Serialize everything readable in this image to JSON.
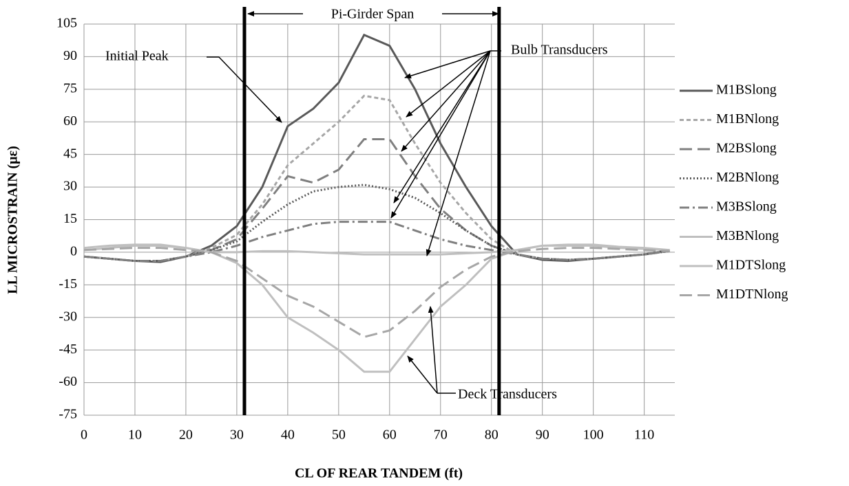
{
  "chart_data": {
    "type": "line",
    "xlabel": "CL OF REAR TANDEM (ft)",
    "ylabel": "LL MICROSTRAIN (με)",
    "x": [
      0,
      5,
      10,
      15,
      20,
      25,
      30,
      35,
      40,
      45,
      50,
      55,
      60,
      65,
      70,
      75,
      80,
      85,
      90,
      95,
      100,
      105,
      110,
      115
    ],
    "series": [
      {
        "name": "M1BSlong",
        "color": "#595959",
        "dash": "solid",
        "values": [
          -2,
          -3,
          -4,
          -4.5,
          -2,
          3,
          12,
          30,
          58,
          66,
          78,
          100,
          95,
          75,
          50,
          30,
          12,
          -1,
          -3.5,
          -4,
          -3,
          -2,
          -1,
          1
        ]
      },
      {
        "name": "M1BNlong",
        "color": "#a6a6a6",
        "dash": "dash",
        "values": [
          -2,
          -3,
          -4,
          -4,
          -2,
          2,
          8,
          22,
          40,
          50,
          60,
          72,
          70,
          50,
          32,
          18,
          6,
          -1,
          -3,
          -3.5,
          -3,
          -2,
          -1,
          1
        ]
      },
      {
        "name": "M2BSlong",
        "color": "#7f7f7f",
        "dash": "longdash",
        "values": [
          -2,
          -3,
          -4,
          -4,
          -2,
          1,
          6,
          20,
          35,
          32,
          38,
          52,
          52,
          35,
          20,
          10,
          3,
          -1,
          -3,
          -3.5,
          -3,
          -2,
          -1,
          0.5
        ]
      },
      {
        "name": "M2BNlong",
        "color": "#595959",
        "dash": "dot",
        "values": [
          -2,
          -3,
          -4,
          -4,
          -2,
          1,
          5,
          14,
          22,
          28,
          30,
          31,
          29,
          25,
          18,
          10,
          3,
          -1,
          -3,
          -3.5,
          -3,
          -2,
          -1,
          0.5
        ]
      },
      {
        "name": "M3BSlong",
        "color": "#7f7f7f",
        "dash": "dashdot",
        "values": [
          -2,
          -3,
          -4,
          -4,
          -2,
          0,
          3,
          7,
          10,
          13,
          14,
          14,
          14,
          10,
          6,
          3,
          1,
          -1,
          -3,
          -3.5,
          -3,
          -2,
          -1,
          0.5
        ]
      },
      {
        "name": "M3BNlong",
        "color": "#bfbfbf",
        "dash": "solid",
        "values": [
          2,
          3,
          3.5,
          3.5,
          2,
          0,
          0,
          0.5,
          0.5,
          0,
          -0.5,
          -1,
          -1,
          -1,
          -1,
          -0.5,
          0,
          1,
          3,
          3.5,
          3.5,
          2.5,
          2,
          1
        ]
      },
      {
        "name": "M1DTSlong",
        "color": "#bfbfbf",
        "dash": "solid",
        "values": [
          1,
          2,
          3,
          3,
          2,
          0,
          -5,
          -15,
          -30,
          -37,
          -45,
          -55,
          -55,
          -40,
          -25,
          -15,
          -3,
          1,
          3,
          3,
          3,
          2,
          1.5,
          1
        ]
      },
      {
        "name": "M1DTNlong",
        "color": "#a6a6a6",
        "dash": "longdash",
        "values": [
          1,
          1.5,
          2,
          2,
          1,
          0,
          -4,
          -12,
          -20,
          -25,
          -32,
          -39,
          -36,
          -27,
          -16,
          -8,
          -2,
          0.5,
          1.5,
          2,
          2,
          1.5,
          1,
          0.5
        ]
      }
    ],
    "xlim": [
      0,
      116
    ],
    "xticks": [
      0,
      10,
      20,
      30,
      40,
      50,
      60,
      70,
      80,
      90,
      100,
      110
    ],
    "ylim": [
      -75,
      105
    ],
    "yticks": [
      -75,
      -60,
      -45,
      -30,
      -15,
      0,
      15,
      30,
      45,
      60,
      75,
      90,
      105
    ],
    "grid": true,
    "legend": "right",
    "vlines": [
      31.5,
      81.5
    ],
    "annotations": [
      "Pi-Girder Span",
      "Initial Peak",
      "Bulb Transducers",
      "Deck Transducers"
    ]
  }
}
